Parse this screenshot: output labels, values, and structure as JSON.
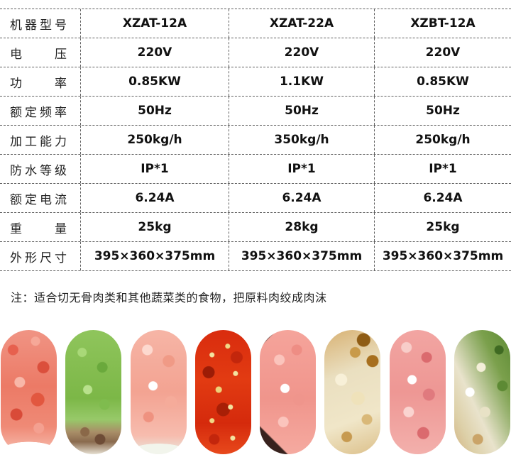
{
  "table": {
    "border_color": "#5f5f5f",
    "rows": [
      {
        "label": "机器型号",
        "values": [
          "XZAT-12A",
          "XZAT-22A",
          "XZBT-12A"
        ]
      },
      {
        "label": "电压",
        "values": [
          "220V",
          "220V",
          "220V"
        ]
      },
      {
        "label": "功率",
        "values": [
          "0.85KW",
          "1.1KW",
          "0.85KW"
        ]
      },
      {
        "label": "额定频率",
        "values": [
          "50Hz",
          "50Hz",
          "50Hz"
        ]
      },
      {
        "label": "加工能力",
        "values": [
          "250kg/h",
          "350kg/h",
          "250kg/h"
        ]
      },
      {
        "label": "防水等级",
        "values": [
          "IP*1",
          "IP*1",
          "IP*1"
        ]
      },
      {
        "label": "额定电流",
        "values": [
          "6.24A",
          "6.24A",
          "6.24A"
        ]
      },
      {
        "label": "重量",
        "values": [
          "25kg",
          "28kg",
          "25kg"
        ]
      },
      {
        "label": "外形尺寸",
        "values": [
          "395×360×375mm",
          "395×360×375mm",
          "395×360×375mm"
        ]
      }
    ]
  },
  "note": {
    "text": "注：适合切无骨肉类和其他蔬菜类的食物，把原料肉绞成肉沫"
  },
  "images": {
    "items": [
      {
        "name": "minced-red-meat",
        "dominant_colors": [
          "#ec7a66",
          "#d94b38",
          "#ffffff"
        ]
      },
      {
        "name": "chopped-celery",
        "dominant_colors": [
          "#7cb747",
          "#a9d878",
          "#8a6a4e"
        ]
      },
      {
        "name": "minced-shrimp-meat",
        "dominant_colors": [
          "#f3a392",
          "#ffffff",
          "#e8e9df"
        ]
      },
      {
        "name": "chopped-chili-peppers",
        "dominant_colors": [
          "#d92c0e",
          "#f3e3a0",
          "#9c1c06"
        ]
      },
      {
        "name": "minced-pork",
        "dominant_colors": [
          "#f0958c",
          "#ffffff",
          "#38221e"
        ]
      },
      {
        "name": "crushed-garlic",
        "dominant_colors": [
          "#eadfc0",
          "#8f5c14",
          "#c89a4a"
        ]
      },
      {
        "name": "minced-pork-with-fat",
        "dominant_colors": [
          "#ee9794",
          "#db6a6e",
          "#fad4d0"
        ]
      },
      {
        "name": "chopped-onion-greens",
        "dominant_colors": [
          "#e9e3cc",
          "#5d8a34",
          "#d3b483"
        ]
      }
    ]
  }
}
